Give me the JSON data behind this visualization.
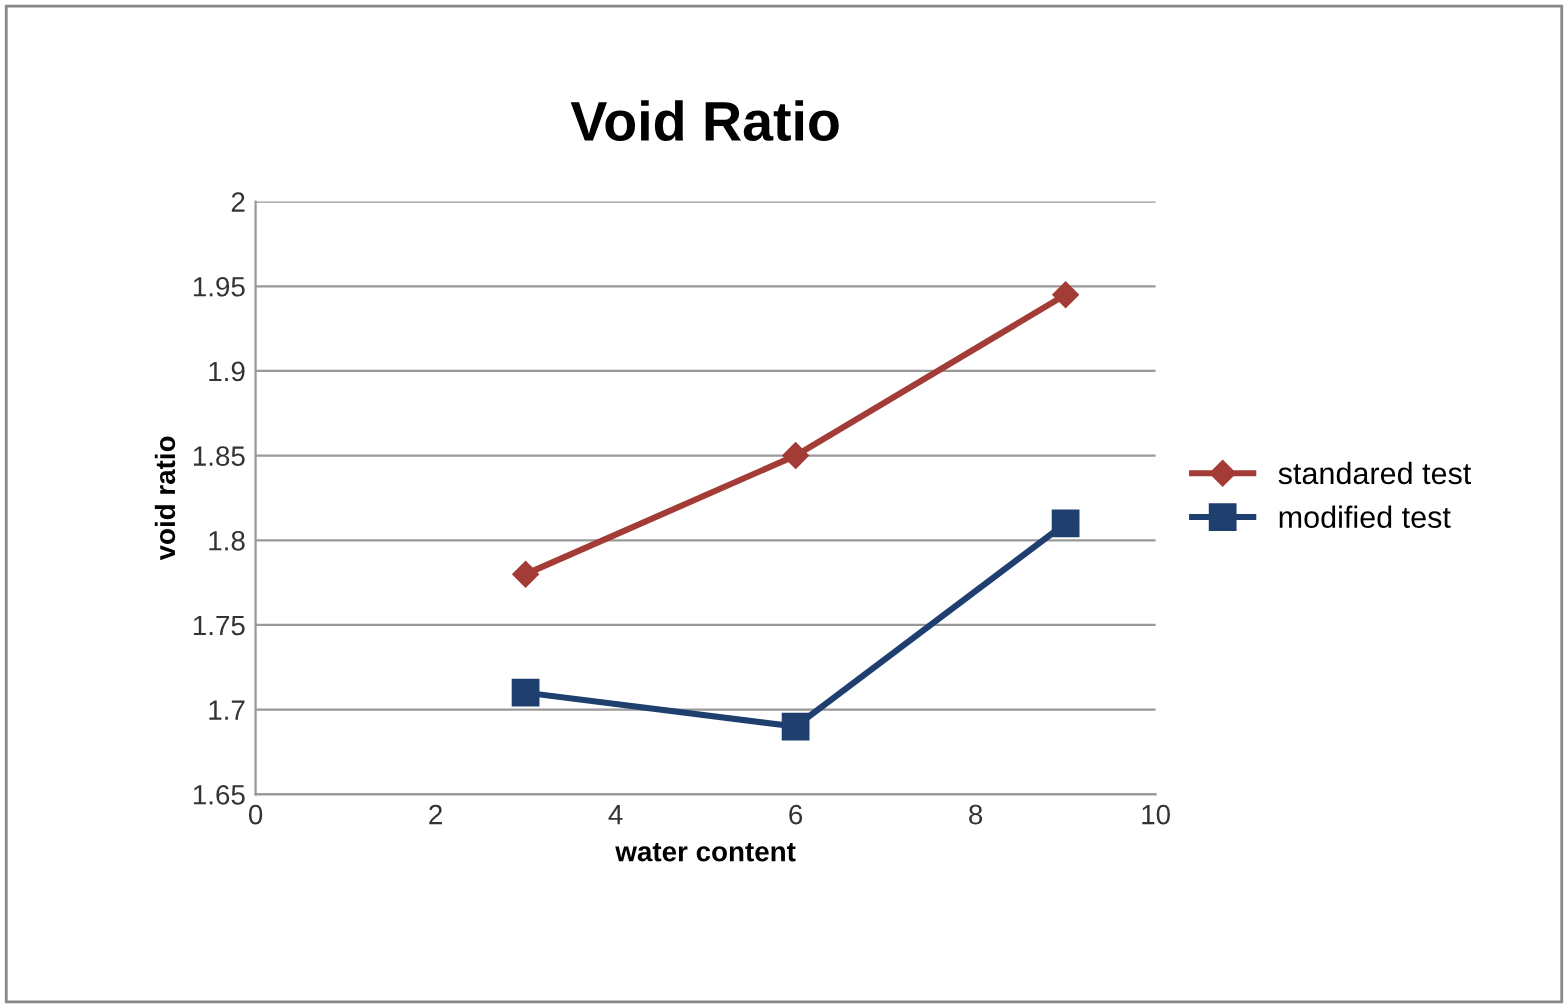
{
  "chart_data": {
    "type": "line",
    "title": "Void Ratio",
    "xlabel": "water content",
    "ylabel": "void ratio",
    "xlim": [
      0,
      10
    ],
    "xticks": [
      0,
      2,
      4,
      6,
      8,
      10
    ],
    "ylim": [
      1.65,
      2
    ],
    "yticks": [
      1.65,
      1.7,
      1.75,
      1.8,
      1.85,
      1.9,
      1.95,
      2
    ],
    "grid": "y",
    "legend": "right",
    "series": [
      {
        "name": "standared test",
        "color": "#a33b37",
        "marker": "diamond",
        "x": [
          3,
          6,
          9
        ],
        "values": [
          1.78,
          1.85,
          1.945
        ]
      },
      {
        "name": "modified test",
        "color": "#1f3f6f",
        "marker": "square",
        "x": [
          3,
          6,
          9
        ],
        "values": [
          1.71,
          1.69,
          1.81
        ]
      }
    ]
  }
}
